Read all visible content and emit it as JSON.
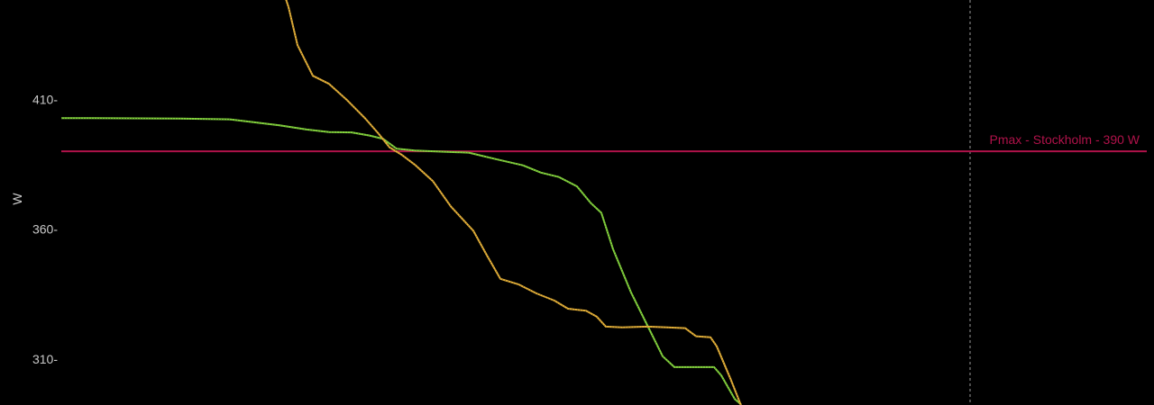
{
  "chart_data": {
    "type": "line",
    "title": "",
    "xlabel": "",
    "ylabel": "W",
    "ylim": [
      292.3,
      448.3
    ],
    "xlim": [
      0,
      1280
    ],
    "grid": false,
    "y_ticks": [
      {
        "value": 410,
        "label": "410-"
      },
      {
        "value": 360,
        "label": "360-"
      },
      {
        "value": 310,
        "label": "310-"
      }
    ],
    "reference_line": {
      "value": 390,
      "label": "Pmax - Stockholm - 390 W",
      "color": "#b0124a"
    },
    "vertical_marker": {
      "x": 1076,
      "color": "#9a9a9a"
    },
    "series": [
      {
        "color": "#86d73f",
        "points": [
          [
            68,
            402.8
          ],
          [
            100,
            402.8
          ],
          [
            150,
            402.7
          ],
          [
            200,
            402.6
          ],
          [
            256,
            402.3
          ],
          [
            280,
            401.3
          ],
          [
            310,
            400.0
          ],
          [
            340,
            398.4
          ],
          [
            365,
            397.4
          ],
          [
            390,
            397.3
          ],
          [
            410,
            396.1
          ],
          [
            425,
            394.8
          ],
          [
            440,
            391.0
          ],
          [
            460,
            390.3
          ],
          [
            490,
            389.9
          ],
          [
            520,
            389.5
          ],
          [
            550,
            387.0
          ],
          [
            580,
            384.6
          ],
          [
            600,
            381.8
          ],
          [
            620,
            380.1
          ],
          [
            640,
            376.5
          ],
          [
            655,
            370.2
          ],
          [
            667,
            366.3
          ],
          [
            680,
            352.3
          ],
          [
            700,
            335.6
          ],
          [
            720,
            321.6
          ],
          [
            735,
            311.1
          ],
          [
            748,
            306.9
          ],
          [
            760,
            306.9
          ],
          [
            792,
            306.9
          ],
          [
            800,
            303.7
          ],
          [
            815,
            294.6
          ],
          [
            822,
            292.5
          ]
        ]
      },
      {
        "color": "#e8b33a",
        "points": [
          [
            316,
            449.8
          ],
          [
            320,
            445.6
          ],
          [
            330,
            430.9
          ],
          [
            347,
            419.1
          ],
          [
            365,
            416.0
          ],
          [
            385,
            409.7
          ],
          [
            405,
            402.7
          ],
          [
            420,
            396.8
          ],
          [
            432,
            391.6
          ],
          [
            445,
            388.8
          ],
          [
            460,
            384.9
          ],
          [
            480,
            378.6
          ],
          [
            500,
            368.8
          ],
          [
            525,
            359.4
          ],
          [
            540,
            350.0
          ],
          [
            555,
            340.9
          ],
          [
            575,
            338.8
          ],
          [
            595,
            335.3
          ],
          [
            615,
            332.5
          ],
          [
            630,
            329.4
          ],
          [
            650,
            328.6
          ],
          [
            662,
            326.3
          ],
          [
            672,
            322.5
          ],
          [
            690,
            322.2
          ],
          [
            718,
            322.5
          ],
          [
            740,
            322.2
          ],
          [
            760,
            321.9
          ],
          [
            772,
            318.8
          ],
          [
            788,
            318.4
          ],
          [
            795,
            314.9
          ],
          [
            810,
            302.6
          ],
          [
            822,
            292.1
          ]
        ]
      }
    ]
  }
}
